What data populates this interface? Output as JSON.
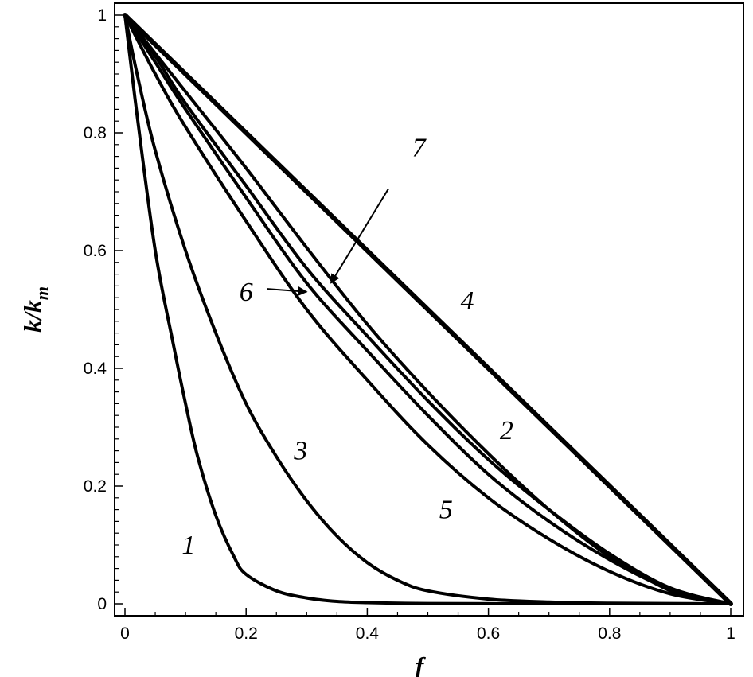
{
  "chart_data": {
    "type": "line",
    "title": "",
    "xlabel": "f",
    "ylabel": {
      "base": "k/k",
      "sub": "m"
    },
    "xlim": [
      0,
      1
    ],
    "ylim": [
      0,
      1
    ],
    "xticks": [
      "0",
      "0.2",
      "0.4",
      "0.6",
      "0.8",
      "1"
    ],
    "yticks": [
      "0",
      "0.2",
      "0.4",
      "0.6",
      "0.8",
      "1"
    ],
    "grid": false,
    "legend": "none",
    "line_color": "#000000",
    "series": [
      {
        "name": "1",
        "x": [
          0,
          0.02,
          0.05,
          0.08,
          0.1,
          0.12,
          0.15,
          0.18,
          0.2,
          0.25,
          0.3,
          0.35,
          0.4,
          0.5,
          0.7,
          1.0
        ],
        "y": [
          1.0,
          0.83,
          0.6,
          0.44,
          0.34,
          0.25,
          0.15,
          0.08,
          0.05,
          0.022,
          0.01,
          0.004,
          0.002,
          0.0005,
          0.0,
          0.0
        ]
      },
      {
        "name": "2",
        "x": [
          0,
          0.1,
          0.2,
          0.3,
          0.4,
          0.5,
          0.6,
          0.7,
          0.8,
          0.9,
          0.95,
          1.0
        ],
        "y": [
          1.0,
          0.87,
          0.74,
          0.605,
          0.475,
          0.36,
          0.255,
          0.16,
          0.08,
          0.022,
          0.008,
          0.0
        ]
      },
      {
        "name": "3",
        "x": [
          0,
          0.02,
          0.05,
          0.1,
          0.15,
          0.2,
          0.25,
          0.3,
          0.35,
          0.4,
          0.45,
          0.5,
          0.6,
          0.7,
          0.8,
          1.0
        ],
        "y": [
          1.0,
          0.9,
          0.77,
          0.6,
          0.46,
          0.34,
          0.25,
          0.175,
          0.115,
          0.07,
          0.04,
          0.022,
          0.008,
          0.003,
          0.001,
          0.0
        ]
      },
      {
        "name": "4",
        "x": [
          0,
          0.25,
          0.5,
          0.75,
          1.0
        ],
        "y": [
          1.0,
          0.75,
          0.5,
          0.25,
          0.0
        ]
      },
      {
        "name": "5",
        "x": [
          0,
          0.05,
          0.1,
          0.2,
          0.3,
          0.4,
          0.5,
          0.6,
          0.7,
          0.8,
          0.9,
          1.0
        ],
        "y": [
          1.0,
          0.9,
          0.81,
          0.65,
          0.5,
          0.38,
          0.27,
          0.18,
          0.11,
          0.055,
          0.017,
          0.0
        ]
      },
      {
        "name": "6",
        "x": [
          0,
          0.05,
          0.1,
          0.2,
          0.3,
          0.4,
          0.5,
          0.6,
          0.7,
          0.8,
          0.9,
          1.0
        ],
        "y": [
          1.0,
          0.92,
          0.84,
          0.69,
          0.545,
          0.43,
          0.32,
          0.22,
          0.14,
          0.075,
          0.025,
          0.0
        ]
      },
      {
        "name": "7",
        "x": [
          0,
          0.05,
          0.1,
          0.2,
          0.3,
          0.4,
          0.5,
          0.6,
          0.7,
          0.8,
          0.9,
          1.0
        ],
        "y": [
          1.0,
          0.93,
          0.85,
          0.71,
          0.57,
          0.455,
          0.345,
          0.245,
          0.16,
          0.085,
          0.027,
          0.0
        ]
      }
    ],
    "annotations": [
      {
        "text": "1",
        "x": 0.105,
        "y": 0.085
      },
      {
        "text": "2",
        "x": 0.63,
        "y": 0.28
      },
      {
        "text": "3",
        "x": 0.29,
        "y": 0.245
      },
      {
        "text": "4",
        "x": 0.565,
        "y": 0.5
      },
      {
        "text": "5",
        "x": 0.53,
        "y": 0.145
      },
      {
        "text": "6",
        "x": 0.2,
        "y": 0.515
      },
      {
        "text": "7",
        "x": 0.485,
        "y": 0.76
      }
    ],
    "arrows": [
      {
        "from": [
          0.235,
          0.535
        ],
        "to": [
          0.3,
          0.53
        ]
      },
      {
        "from": [
          0.435,
          0.705
        ],
        "to": [
          0.34,
          0.545
        ]
      }
    ]
  }
}
